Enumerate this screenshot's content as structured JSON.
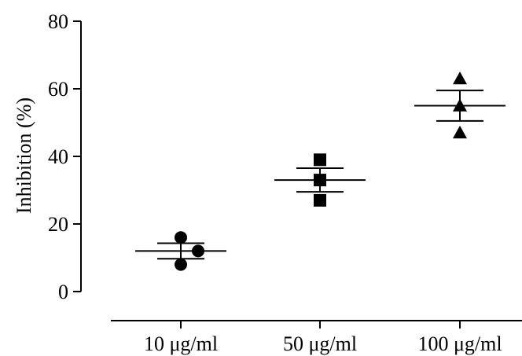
{
  "chart_data": {
    "type": "scatter",
    "ylabel": "Inhibition (%)",
    "xlabel": "",
    "ylim": [
      0,
      80
    ],
    "yticks": [
      0,
      20,
      40,
      60,
      80
    ],
    "grid": false,
    "categories": [
      "10 μg/ml",
      "50 μg/ml",
      "100 μg/ml"
    ],
    "groups": [
      {
        "category": "10 μg/ml",
        "marker": "circle",
        "points": [
          16,
          12,
          8
        ],
        "mean": 12,
        "error_upper": 14.3,
        "error_lower": 9.7
      },
      {
        "category": "50 μg/ml",
        "marker": "square",
        "points": [
          39,
          33,
          27
        ],
        "mean": 33,
        "error_upper": 36.5,
        "error_lower": 29.5
      },
      {
        "category": "100 μg/ml",
        "marker": "triangle",
        "points": [
          63,
          55,
          47
        ],
        "mean": 55,
        "error_upper": 59.5,
        "error_lower": 50.5
      }
    ],
    "marker_color": "#000000"
  }
}
